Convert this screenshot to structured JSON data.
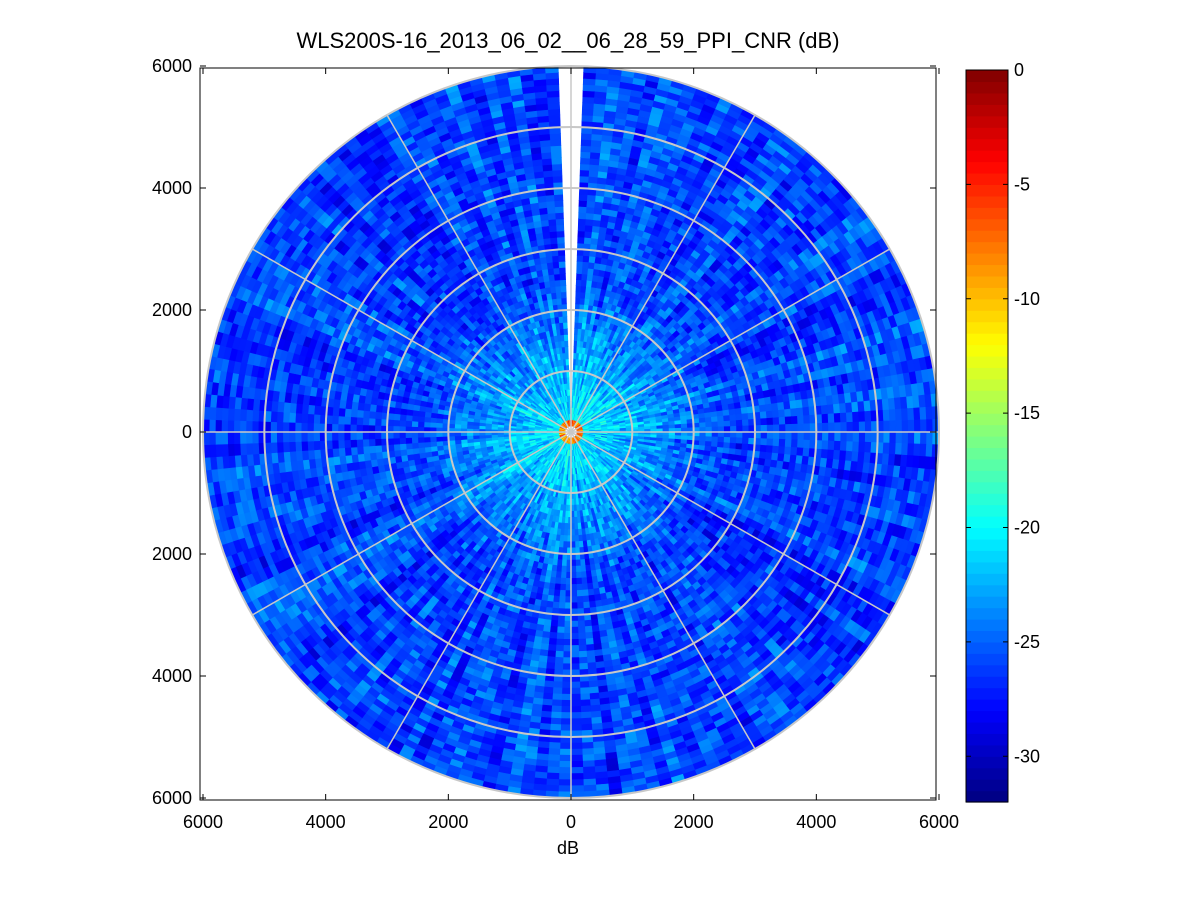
{
  "chart_data": {
    "type": "heatmap",
    "subtype": "polar-ppi",
    "title": "WLS200S-16_2013_06_02__06_28_59_PPI_CNR (dB)",
    "xlabel": "dB",
    "ylabel": "",
    "xlim": [
      -6000,
      6000
    ],
    "ylim": [
      -6000,
      6000
    ],
    "x_ticks": [
      "6000",
      "4000",
      "2000",
      "0",
      "2000",
      "4000",
      "6000"
    ],
    "x_tick_values": [
      -6000,
      -4000,
      -2000,
      0,
      2000,
      4000,
      6000
    ],
    "y_ticks": [
      "6000",
      "4000",
      "2000",
      "0",
      "2000",
      "4000",
      "6000"
    ],
    "y_tick_values": [
      6000,
      4000,
      2000,
      0,
      -2000,
      -4000,
      -6000
    ],
    "max_range": 6000,
    "range_rings": [
      1000,
      2000,
      3000,
      4000,
      5000,
      6000
    ],
    "spokes_deg": [
      0,
      30,
      60,
      90,
      120,
      150,
      180,
      210,
      240,
      270,
      300,
      330
    ],
    "grid": true,
    "missing_sector_deg": [
      -2,
      2
    ],
    "colorbar": {
      "colormap": "jet",
      "min": -32,
      "max": 0,
      "ticks": [
        "0",
        "-5",
        "-10",
        "-15",
        "-20",
        "-25",
        "-30"
      ],
      "tick_values": [
        0,
        -5,
        -10,
        -15,
        -20,
        -25,
        -30
      ]
    },
    "field_description": {
      "background_level_db": -26,
      "near_range_level_db": -21,
      "center_level_db": -8
    }
  }
}
